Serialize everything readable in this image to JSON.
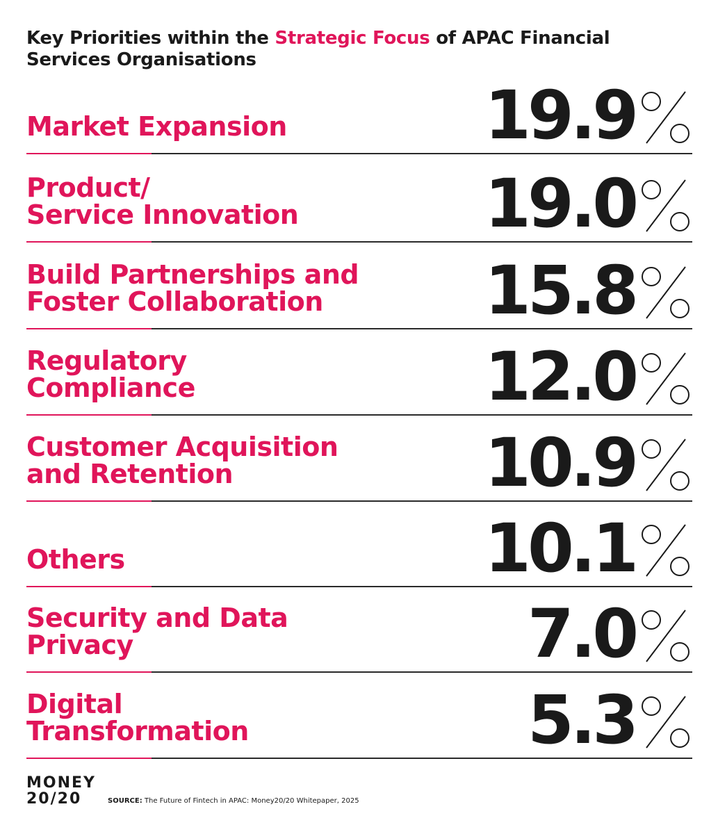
{
  "title": {
    "part1": "Key Priorities within the ",
    "accent": "Strategic Focus",
    "part2": " of APAC Financial Services Organisations"
  },
  "chart_data": {
    "type": "table",
    "title": "Key Priorities within the Strategic Focus of APAC Financial Services Organisations",
    "unit": "%",
    "categories": [
      "Market Expansion",
      "Product/\nService Innovation",
      "Build Partnerships and\nFoster Collaboration",
      "Regulatory\nCompliance",
      "Customer Acquisition\nand Retention",
      "Others",
      "Security and Data\nPrivacy",
      "Digital\nTransformation"
    ],
    "values": [
      19.9,
      19.0,
      15.8,
      12.0,
      10.9,
      10.1,
      7.0,
      5.3
    ],
    "value_labels": [
      "19.9",
      "19.0",
      "15.8",
      "12.0",
      "10.9",
      "10.1",
      "7.0",
      "5.3"
    ]
  },
  "logo": {
    "line1": "MONEY",
    "line2": "20/20"
  },
  "source": {
    "label": "SOURCE:",
    "text": " The Future of Fintech in APAC: Money20/20 Whitepaper, 2025"
  },
  "colors": {
    "accent": "#e0155a",
    "text": "#1a1a1a",
    "rule": "#2a2a2a"
  }
}
